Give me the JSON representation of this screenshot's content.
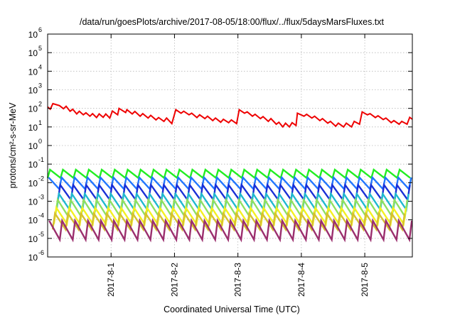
{
  "chart_data": {
    "type": "line",
    "title": "/data/run/goesPlots/archive/2017-08-05/18:00/flux/../flux/5daysMarsFluxes.txt",
    "xlabel": "Coordinated Universal Time (UTC)",
    "ylabel": "protons/cm²-s-sr-MeV",
    "yscale": "log",
    "ylim": [
      1e-06,
      1000000.0
    ],
    "xlim": [
      "2017-07-31T00:00",
      "2017-08-05T18:00"
    ],
    "grid": true,
    "x_ticks": [
      "2017-8-1",
      "2017-8-2",
      "2017-8-3",
      "2017-8-4",
      "2017-8-5"
    ],
    "y_ticks": [
      {
        "base": "10",
        "exp": "-6",
        "value": 1e-06
      },
      {
        "base": "10",
        "exp": "-5",
        "value": 1e-05
      },
      {
        "base": "10",
        "exp": "-4",
        "value": 0.0001
      },
      {
        "base": "10",
        "exp": "-3",
        "value": 0.001
      },
      {
        "base": "10",
        "exp": "-2",
        "value": 0.01
      },
      {
        "base": "10",
        "exp": "-1",
        "value": 0.1
      },
      {
        "base": "10",
        "exp": "0",
        "value": 1
      },
      {
        "base": "10",
        "exp": "1",
        "value": 10
      },
      {
        "base": "10",
        "exp": "2",
        "value": 100
      },
      {
        "base": "10",
        "exp": "3",
        "value": 1000
      },
      {
        "base": "10",
        "exp": "4",
        "value": 10000
      },
      {
        "base": "10",
        "exp": "5",
        "value": 100000
      },
      {
        "base": "10",
        "exp": "6",
        "value": 1000000
      }
    ],
    "series": [
      {
        "color": "#ee0000",
        "width": 2,
        "points": [
          [
            "2017-07-31T00:00",
            120
          ],
          [
            "2017-07-31T01:00",
            90
          ],
          [
            "2017-07-31T02:00",
            180
          ],
          [
            "2017-07-31T04:30",
            140
          ],
          [
            "2017-07-31T06:00",
            95
          ],
          [
            "2017-07-31T07:00",
            130
          ],
          [
            "2017-07-31T08:30",
            70
          ],
          [
            "2017-07-31T09:30",
            90
          ],
          [
            "2017-07-31T11:00",
            50
          ],
          [
            "2017-07-31T12:00",
            70
          ],
          [
            "2017-07-31T13:30",
            45
          ],
          [
            "2017-07-31T14:30",
            58
          ],
          [
            "2017-07-31T16:00",
            38
          ],
          [
            "2017-07-31T17:00",
            52
          ],
          [
            "2017-07-31T18:30",
            32
          ],
          [
            "2017-07-31T19:30",
            50
          ],
          [
            "2017-07-31T21:00",
            33
          ],
          [
            "2017-07-31T22:00",
            50
          ],
          [
            "2017-07-31T23:30",
            30
          ],
          [
            "2017-08-01T00:30",
            72
          ],
          [
            "2017-08-01T02:30",
            45
          ],
          [
            "2017-08-01T03:00",
            100
          ],
          [
            "2017-08-01T05:30",
            60
          ],
          [
            "2017-08-01T06:00",
            85
          ],
          [
            "2017-08-01T08:00",
            50
          ],
          [
            "2017-08-01T09:00",
            68
          ],
          [
            "2017-08-01T11:00",
            38
          ],
          [
            "2017-08-01T12:00",
            52
          ],
          [
            "2017-08-01T14:00",
            30
          ],
          [
            "2017-08-01T15:00",
            42
          ],
          [
            "2017-08-01T17:00",
            24
          ],
          [
            "2017-08-01T18:00",
            32
          ],
          [
            "2017-08-01T20:00",
            20
          ],
          [
            "2017-08-01T21:00",
            30
          ],
          [
            "2017-08-01T23:00",
            15
          ],
          [
            "2017-08-02T00:30",
            85
          ],
          [
            "2017-08-02T02:30",
            55
          ],
          [
            "2017-08-02T03:30",
            70
          ],
          [
            "2017-08-02T05:30",
            45
          ],
          [
            "2017-08-02T06:30",
            55
          ],
          [
            "2017-08-02T08:30",
            32
          ],
          [
            "2017-08-02T09:30",
            45
          ],
          [
            "2017-08-02T11:30",
            28
          ],
          [
            "2017-08-02T12:30",
            38
          ],
          [
            "2017-08-02T14:30",
            22
          ],
          [
            "2017-08-02T15:30",
            30
          ],
          [
            "2017-08-02T17:30",
            18
          ],
          [
            "2017-08-02T18:30",
            26
          ],
          [
            "2017-08-02T20:30",
            17
          ],
          [
            "2017-08-02T21:30",
            24
          ],
          [
            "2017-08-02T23:30",
            15
          ],
          [
            "2017-08-03T00:30",
            85
          ],
          [
            "2017-08-03T02:30",
            55
          ],
          [
            "2017-08-03T03:30",
            65
          ],
          [
            "2017-08-03T05:30",
            38
          ],
          [
            "2017-08-03T06:30",
            48
          ],
          [
            "2017-08-03T08:30",
            28
          ],
          [
            "2017-08-03T09:30",
            36
          ],
          [
            "2017-08-03T11:30",
            20
          ],
          [
            "2017-08-03T12:30",
            28
          ],
          [
            "2017-08-03T14:30",
            14
          ],
          [
            "2017-08-03T15:30",
            18
          ],
          [
            "2017-08-03T17:00",
            10
          ],
          [
            "2017-08-03T18:00",
            16
          ],
          [
            "2017-08-03T19:30",
            10
          ],
          [
            "2017-08-03T20:30",
            17
          ],
          [
            "2017-08-03T22:00",
            12
          ],
          [
            "2017-08-03T22:30",
            55
          ],
          [
            "2017-08-04T01:00",
            38
          ],
          [
            "2017-08-04T02:00",
            48
          ],
          [
            "2017-08-04T04:00",
            30
          ],
          [
            "2017-08-04T05:00",
            38
          ],
          [
            "2017-08-04T07:00",
            22
          ],
          [
            "2017-08-04T08:00",
            28
          ],
          [
            "2017-08-04T10:00",
            16
          ],
          [
            "2017-08-04T11:00",
            20
          ],
          [
            "2017-08-04T13:00",
            11
          ],
          [
            "2017-08-04T14:00",
            16
          ],
          [
            "2017-08-04T16:00",
            10
          ],
          [
            "2017-08-04T17:00",
            16
          ],
          [
            "2017-08-04T19:00",
            10
          ],
          [
            "2017-08-04T20:00",
            20
          ],
          [
            "2017-08-04T22:00",
            14
          ],
          [
            "2017-08-04T23:00",
            65
          ],
          [
            "2017-08-05T01:00",
            45
          ],
          [
            "2017-08-05T02:00",
            52
          ],
          [
            "2017-08-05T04:00",
            32
          ],
          [
            "2017-08-05T05:00",
            40
          ],
          [
            "2017-08-05T07:00",
            25
          ],
          [
            "2017-08-05T08:00",
            30
          ],
          [
            "2017-08-05T10:00",
            17
          ],
          [
            "2017-08-05T11:00",
            22
          ],
          [
            "2017-08-05T13:00",
            14
          ],
          [
            "2017-08-05T14:00",
            20
          ],
          [
            "2017-08-05T16:00",
            14
          ],
          [
            "2017-08-05T17:00",
            33
          ],
          [
            "2017-08-05T18:00",
            26
          ]
        ]
      },
      {
        "color": "#22ee22",
        "width": 2.4,
        "oscillation": {
          "low": 0.018,
          "high": 0.05,
          "period_hours": 4.9,
          "phase_hours": 0
        }
      },
      {
        "color": "#2277ff",
        "width": 2.4,
        "oscillation": {
          "low": 0.0045,
          "high": 0.019,
          "period_hours": 4.9,
          "phase_hours": 0.5
        }
      },
      {
        "color": "#1a2fd6",
        "width": 2.4,
        "oscillation": {
          "low": 0.0012,
          "high": 0.0075,
          "period_hours": 4.9,
          "phase_hours": 1.0
        }
      },
      {
        "color": "#1fb9ce",
        "width": 2.4,
        "oscillation": {
          "low": 0.00035,
          "high": 0.0025,
          "period_hours": 4.9,
          "phase_hours": 1.5
        }
      },
      {
        "color": "#8fe060",
        "width": 2.4,
        "oscillation": {
          "low": 0.00015,
          "high": 0.0012,
          "period_hours": 4.9,
          "phase_hours": 2.0
        }
      },
      {
        "color": "#f4f020",
        "width": 2.4,
        "oscillation": {
          "low": 6e-05,
          "high": 0.00045,
          "period_hours": 4.9,
          "phase_hours": 2.5
        }
      },
      {
        "color": "#d6c030",
        "width": 2.4,
        "oscillation": {
          "low": 3e-05,
          "high": 0.00022,
          "period_hours": 4.9,
          "phase_hours": 3.0
        }
      },
      {
        "color": "#9b2f6e",
        "width": 2.4,
        "oscillation": {
          "low": 8.5e-06,
          "high": 9e-05,
          "period_hours": 4.9,
          "phase_hours": 0.3
        }
      }
    ]
  }
}
